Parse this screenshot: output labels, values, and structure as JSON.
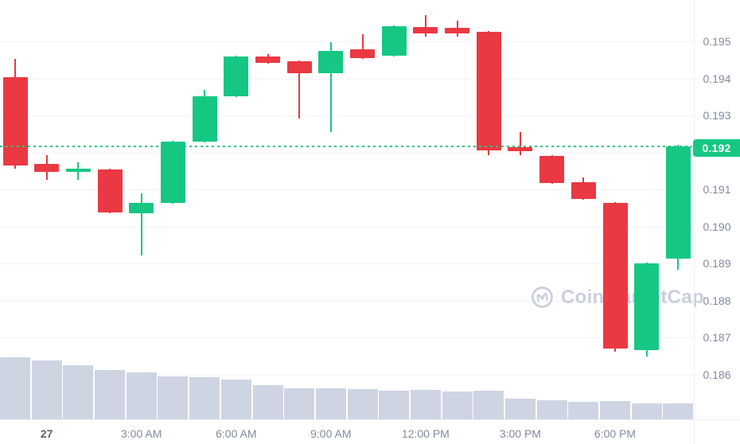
{
  "watermark": {
    "text": "CoinMarketCap"
  },
  "theme": {
    "up_green": "#16C784",
    "down_red": "#EA3943",
    "volume_bar": "#CED4E2",
    "axis_text": "#808A9D",
    "axis_text_emphasis": "#57606F",
    "grid": "#F2F3F7",
    "separator": "#EDEFF3",
    "badge_bg": "#16C784",
    "badge_text": "#FFFFFF",
    "dashed_line": "#16C784",
    "watermark_color": "#C9CFDB"
  },
  "chart_data": {
    "type": "candlestick_with_volume",
    "title": "",
    "grid": "on",
    "y_axis": {
      "side": "right",
      "min": 0.186,
      "max": 0.1957,
      "ticks": [
        {
          "label": "0.195",
          "value": 0.195
        },
        {
          "label": "0.194",
          "value": 0.194
        },
        {
          "label": "0.193",
          "value": 0.193
        },
        {
          "label": "0.192",
          "value": 0.192
        },
        {
          "label": "0.191",
          "value": 0.191
        },
        {
          "label": "0.190",
          "value": 0.19
        },
        {
          "label": "0.189",
          "value": 0.189
        },
        {
          "label": "0.188",
          "value": 0.188
        },
        {
          "label": "0.187",
          "value": 0.187
        },
        {
          "label": "0.186",
          "value": 0.186
        }
      ]
    },
    "x_axis": {
      "ticks": [
        {
          "index": 1,
          "label": "27",
          "emphasis": true
        },
        {
          "index": 4,
          "label": "3:00 AM"
        },
        {
          "index": 7,
          "label": "6:00 AM"
        },
        {
          "index": 10,
          "label": "9:00 AM"
        },
        {
          "index": 13,
          "label": "12:00 PM"
        },
        {
          "index": 16,
          "label": "3:00 PM"
        },
        {
          "index": 19,
          "label": "6:00 PM"
        }
      ]
    },
    "current_price": {
      "label": "0.192",
      "value": 0.19216,
      "line_style": "dotted"
    },
    "candles": [
      {
        "time": "11:00 PM",
        "open": 0.19403,
        "high": 0.19453,
        "low": 0.19156,
        "close": 0.19165
      },
      {
        "time": "12:00 AM",
        "open": 0.19169,
        "high": 0.19193,
        "low": 0.19126,
        "close": 0.19147
      },
      {
        "time": "1:00 AM",
        "open": 0.19147,
        "high": 0.19173,
        "low": 0.19126,
        "close": 0.19156
      },
      {
        "time": "2:00 AM",
        "open": 0.19154,
        "high": 0.19156,
        "low": 0.19036,
        "close": 0.19038
      },
      {
        "time": "3:00 AM",
        "open": 0.19036,
        "high": 0.19089,
        "low": 0.18922,
        "close": 0.19063
      },
      {
        "time": "4:00 AM",
        "open": 0.19063,
        "high": 0.19231,
        "low": 0.19061,
        "close": 0.19229
      },
      {
        "time": "5:00 AM",
        "open": 0.19229,
        "high": 0.19369,
        "low": 0.19227,
        "close": 0.19352
      },
      {
        "time": "6:00 AM",
        "open": 0.19352,
        "high": 0.19461,
        "low": 0.19349,
        "close": 0.19459
      },
      {
        "time": "7:00 AM",
        "open": 0.19459,
        "high": 0.19466,
        "low": 0.1944,
        "close": 0.19442
      },
      {
        "time": "8:00 AM",
        "open": 0.19446,
        "high": 0.19448,
        "low": 0.19291,
        "close": 0.19414
      },
      {
        "time": "9:00 AM",
        "open": 0.19414,
        "high": 0.19498,
        "low": 0.19255,
        "close": 0.19474
      },
      {
        "time": "10:00 AM",
        "open": 0.19479,
        "high": 0.19519,
        "low": 0.19453,
        "close": 0.19455
      },
      {
        "time": "11:00 AM",
        "open": 0.19461,
        "high": 0.19543,
        "low": 0.19459,
        "close": 0.19541
      },
      {
        "time": "12:00 PM",
        "open": 0.19539,
        "high": 0.19571,
        "low": 0.19513,
        "close": 0.19522
      },
      {
        "time": "1:00 PM",
        "open": 0.19537,
        "high": 0.19556,
        "low": 0.19513,
        "close": 0.19522
      },
      {
        "time": "2:00 PM",
        "open": 0.19526,
        "high": 0.19528,
        "low": 0.19193,
        "close": 0.19205
      },
      {
        "time": "3:00 PM",
        "open": 0.19214,
        "high": 0.19255,
        "low": 0.19193,
        "close": 0.19203
      },
      {
        "time": "4:00 PM",
        "open": 0.1919,
        "high": 0.19193,
        "low": 0.19115,
        "close": 0.19117
      },
      {
        "time": "5:00 PM",
        "open": 0.19119,
        "high": 0.19132,
        "low": 0.19072,
        "close": 0.19074
      },
      {
        "time": "6:00 PM",
        "open": 0.19064,
        "high": 0.19066,
        "low": 0.18662,
        "close": 0.1867
      },
      {
        "time": "7:00 PM",
        "open": 0.18666,
        "high": 0.18902,
        "low": 0.18649,
        "close": 0.189
      },
      {
        "time": "8:00 PM",
        "open": 0.18913,
        "high": 0.1922,
        "low": 0.18883,
        "close": 0.19216
      }
    ],
    "volume": {
      "unit": "relative",
      "values": [
        78,
        74,
        68,
        62,
        59,
        54,
        53,
        50,
        43,
        39,
        39,
        38,
        36,
        37,
        35,
        36,
        26,
        24,
        22,
        23,
        20,
        20
      ]
    }
  }
}
